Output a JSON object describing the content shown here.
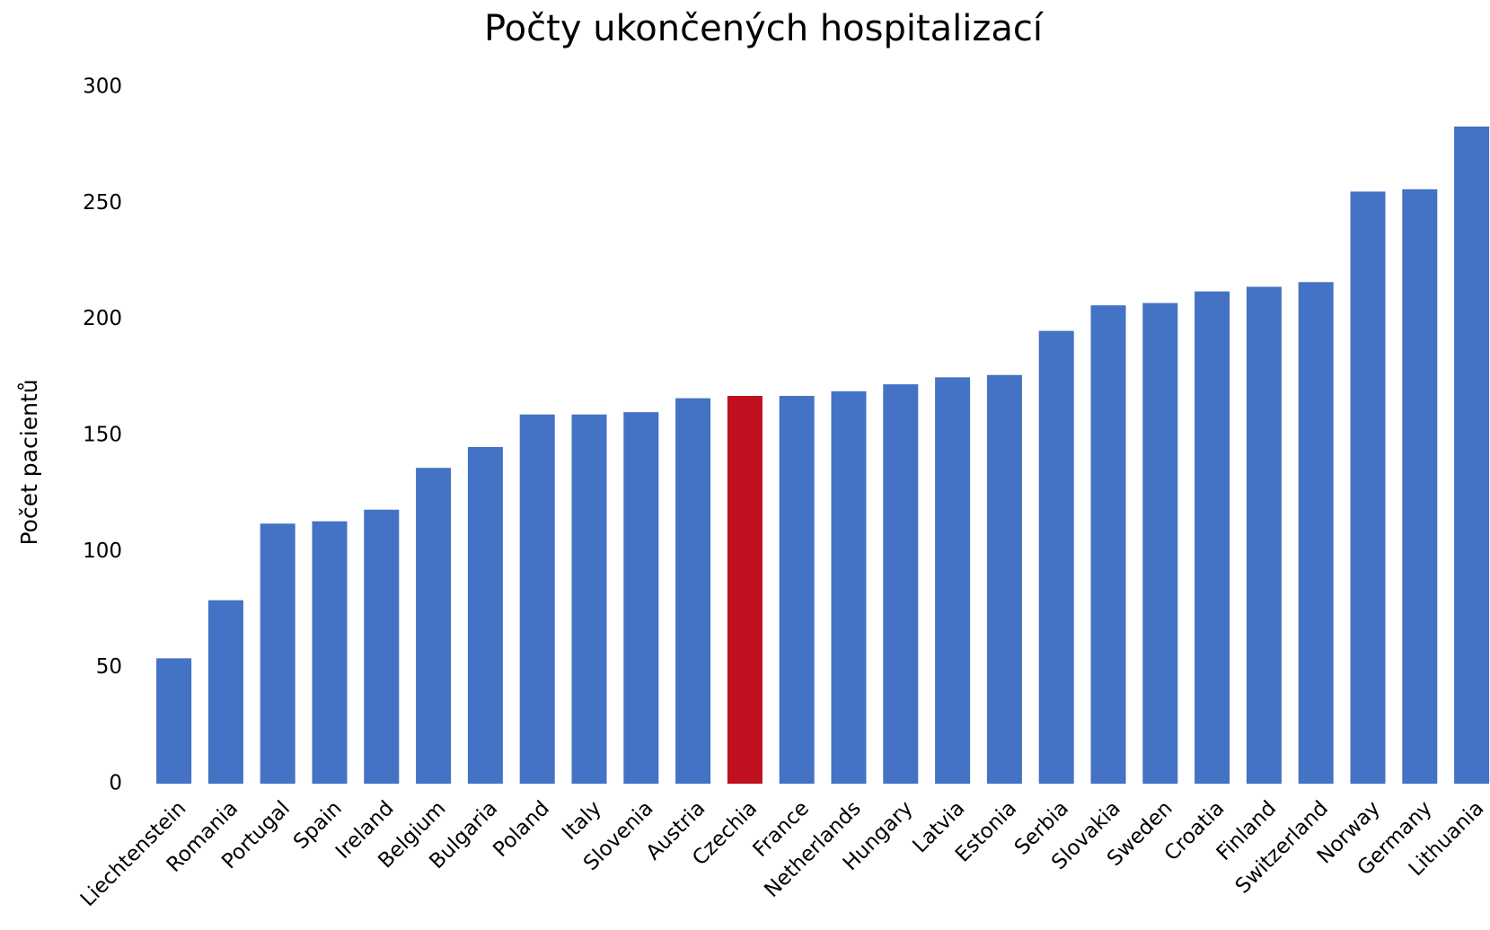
{
  "chart_data": {
    "type": "bar",
    "title": "Počty ukončených hospitalizací",
    "y_label": "Počet pacientů",
    "categories": [
      "Liechtenstein",
      "Romania",
      "Portugal",
      "Spain",
      "Ireland",
      "Belgium",
      "Bulgaria",
      "Poland",
      "Italy",
      "Slovenia",
      "Austria",
      "Czechia",
      "France",
      "Netherlands",
      "Hungary",
      "Latvia",
      "Estonia",
      "Serbia",
      "Slovakia",
      "Sweden",
      "Croatia",
      "Finland",
      "Switzerland",
      "Norway",
      "Germany",
      "Lithuania"
    ],
    "values": [
      54,
      79,
      112,
      113,
      118,
      136,
      145,
      159,
      159,
      160,
      166,
      167,
      167,
      169,
      172,
      175,
      176,
      195,
      206,
      207,
      212,
      214,
      216,
      255,
      256,
      283
    ],
    "colors": [
      "#4472c4",
      "#4472c4",
      "#4472c4",
      "#4472c4",
      "#4472c4",
      "#4472c4",
      "#4472c4",
      "#4472c4",
      "#4472c4",
      "#4472c4",
      "#4472c4",
      "#c00f1e",
      "#4472c4",
      "#4472c4",
      "#4472c4",
      "#4472c4",
      "#4472c4",
      "#4472c4",
      "#4472c4",
      "#4472c4",
      "#4472c4",
      "#4472c4",
      "#4472c4",
      "#4472c4",
      "#4472c4",
      "#4472c4"
    ],
    "ylim": [
      0,
      300
    ],
    "yticks": [
      0,
      50,
      100,
      150,
      200,
      250,
      300
    ],
    "grid": false
  }
}
